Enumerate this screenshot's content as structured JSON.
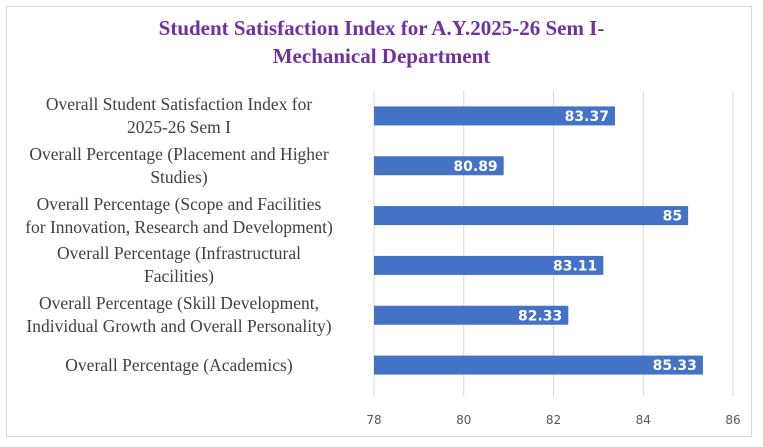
{
  "chart_data": {
    "type": "bar",
    "orientation": "horizontal",
    "title": [
      "Student Satisfaction Index for A.Y.2025-26 Sem I-",
      "Mechanical Department"
    ],
    "xlabel": "",
    "ylabel": "",
    "categories": [
      [
        "Overall Student Satisfaction Index for",
        "2025-26 Sem I"
      ],
      [
        "Overall Percentage (Placement and Higher",
        "Studies)"
      ],
      [
        "Overall Percentage (Scope and Facilities",
        "for Innovation, Research and Development)"
      ],
      [
        "Overall Percentage (Infrastructural",
        "Facilities)"
      ],
      [
        "Overall Percentage (Skill Development,",
        "Individual Growth and Overall Personality)"
      ],
      [
        "Overall Percentage (Academics)"
      ]
    ],
    "values": [
      83.37,
      80.89,
      85,
      83.11,
      82.33,
      85.33
    ],
    "data_labels": [
      "83.37",
      "80.89",
      "85",
      "83.11",
      "82.33",
      "85.33"
    ],
    "xlim": [
      78,
      86
    ],
    "xticks": [
      78,
      80,
      82,
      84,
      86
    ],
    "xtick_labels": [
      "78",
      "80",
      "82",
      "84",
      "86"
    ],
    "grid": true,
    "legend": "none",
    "colors": {
      "bar": "#4472C4",
      "title": "#7030A0",
      "grid": "#D9D9D9",
      "label": "#404040",
      "data_label": "#FFFFFF"
    }
  }
}
